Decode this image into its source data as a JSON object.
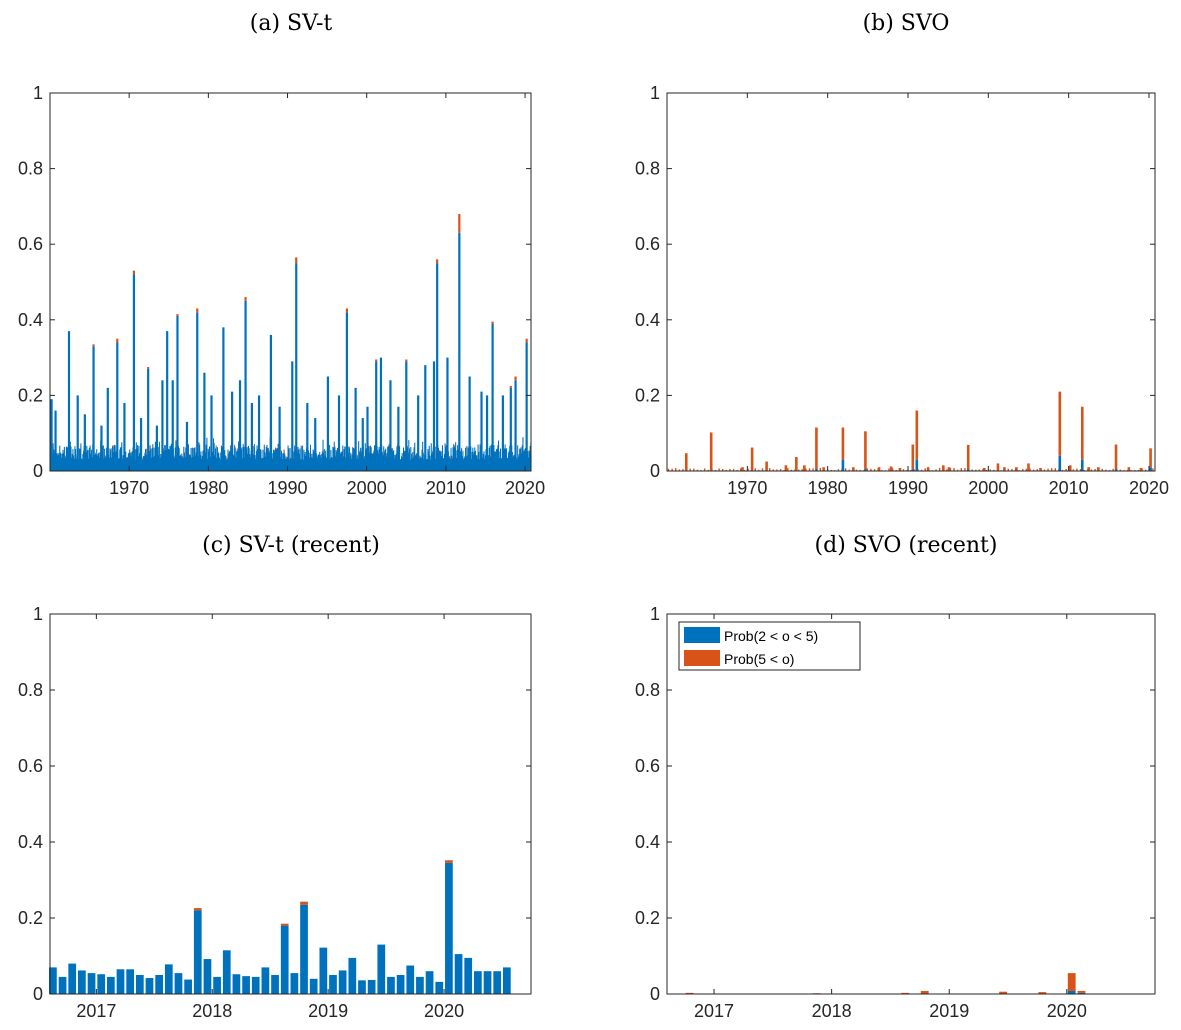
{
  "colors": {
    "blue": "#0072BD",
    "orange": "#D95319",
    "axis": "#262626"
  },
  "chart_data": [
    {
      "type": "bar",
      "stacked": true,
      "title": "(a) SV-t",
      "xlim": [
        1960,
        2020.75
      ],
      "ylim": [
        0,
        1
      ],
      "xticks": [
        1970,
        1980,
        1990,
        2000,
        2010,
        2020
      ],
      "yticks": [
        0,
        0.2,
        0.4,
        0.6,
        0.8,
        1
      ],
      "ytick_labels": [
        "0",
        "0.2",
        "0.4",
        "0.6",
        "0.8",
        "1"
      ],
      "grid": false,
      "series": [
        {
          "name": "Prob(2 < o < 5)"
        },
        {
          "name": "Prob(5 < o)"
        }
      ],
      "baseline_range": [
        0.03,
        0.07
      ],
      "spikes": [
        [
          1960.2,
          0.19,
          0
        ],
        [
          1960.7,
          0.16,
          0
        ],
        [
          1962.4,
          0.37,
          0
        ],
        [
          1963.5,
          0.2,
          0
        ],
        [
          1964.4,
          0.15,
          0
        ],
        [
          1965.5,
          0.33,
          0.005
        ],
        [
          1966.5,
          0.12,
          0
        ],
        [
          1967.3,
          0.22,
          0
        ],
        [
          1968.5,
          0.34,
          0.01
        ],
        [
          1969.4,
          0.18,
          0
        ],
        [
          1970.6,
          0.52,
          0.01
        ],
        [
          1971.5,
          0.14,
          0
        ],
        [
          1972.4,
          0.27,
          0.005
        ],
        [
          1973.5,
          0.12,
          0
        ],
        [
          1974.2,
          0.24,
          0
        ],
        [
          1974.8,
          0.37,
          0
        ],
        [
          1975.5,
          0.24,
          0
        ],
        [
          1976.1,
          0.41,
          0.005
        ],
        [
          1977.3,
          0.13,
          0
        ],
        [
          1978.6,
          0.42,
          0.01
        ],
        [
          1979.5,
          0.26,
          0
        ],
        [
          1980.4,
          0.2,
          0
        ],
        [
          1981.9,
          0.38,
          0
        ],
        [
          1983.0,
          0.21,
          0
        ],
        [
          1984.0,
          0.24,
          0
        ],
        [
          1984.7,
          0.45,
          0.01
        ],
        [
          1985.5,
          0.18,
          0
        ],
        [
          1986.4,
          0.2,
          0
        ],
        [
          1987.9,
          0.36,
          0
        ],
        [
          1989.0,
          0.17,
          0
        ],
        [
          1990.6,
          0.29,
          0
        ],
        [
          1991.1,
          0.55,
          0.015
        ],
        [
          1992.5,
          0.18,
          0
        ],
        [
          1993.5,
          0.14,
          0
        ],
        [
          1995.1,
          0.25,
          0
        ],
        [
          1996.5,
          0.2,
          0
        ],
        [
          1997.5,
          0.42,
          0.01
        ],
        [
          1998.6,
          0.22,
          0
        ],
        [
          1999.5,
          0.14,
          0
        ],
        [
          2000.1,
          0.17,
          0
        ],
        [
          2001.2,
          0.29,
          0.005
        ],
        [
          2001.8,
          0.3,
          0
        ],
        [
          2003.0,
          0.24,
          0
        ],
        [
          2004.0,
          0.17,
          0
        ],
        [
          2005.0,
          0.29,
          0.005
        ],
        [
          2006.5,
          0.2,
          0
        ],
        [
          2007.4,
          0.28,
          0
        ],
        [
          2008.5,
          0.29,
          0
        ],
        [
          2008.9,
          0.55,
          0.01
        ],
        [
          2010.2,
          0.3,
          0
        ],
        [
          2011.7,
          0.63,
          0.05
        ],
        [
          2013.0,
          0.25,
          0
        ],
        [
          2014.5,
          0.21,
          0
        ],
        [
          2015.2,
          0.2,
          0
        ],
        [
          2015.9,
          0.39,
          0.005
        ],
        [
          2017.2,
          0.2,
          0
        ],
        [
          2018.2,
          0.22,
          0.005
        ],
        [
          2018.8,
          0.24,
          0.01
        ],
        [
          2020.2,
          0.34,
          0.01
        ]
      ]
    },
    {
      "type": "bar",
      "stacked": true,
      "title": "(b) SVO",
      "xlim": [
        1960,
        2020.75
      ],
      "ylim": [
        0,
        1
      ],
      "xticks": [
        1970,
        1980,
        1990,
        2000,
        2010,
        2020
      ],
      "yticks": [
        0,
        0.2,
        0.4,
        0.6,
        0.8,
        1
      ],
      "ytick_labels": [
        "0",
        "0.2",
        "0.4",
        "0.6",
        "0.8",
        "1"
      ],
      "grid": false,
      "series": [
        {
          "name": "Prob(2 < o < 5)"
        },
        {
          "name": "Prob(5 < o)"
        }
      ],
      "spikes": [
        [
          1962.4,
          0.002,
          0.045
        ],
        [
          1965.5,
          0.002,
          0.1
        ],
        [
          1969.4,
          0,
          0.01
        ],
        [
          1970.6,
          0.002,
          0.06
        ],
        [
          1972.4,
          0,
          0.025
        ],
        [
          1974.8,
          0,
          0.015
        ],
        [
          1976.1,
          0.002,
          0.035
        ],
        [
          1977.1,
          0,
          0.015
        ],
        [
          1978.6,
          0.005,
          0.11
        ],
        [
          1979.5,
          0,
          0.01
        ],
        [
          1981.9,
          0.03,
          0.085
        ],
        [
          1983.2,
          0,
          0.01
        ],
        [
          1984.7,
          0.005,
          0.1
        ],
        [
          1986.4,
          0,
          0.01
        ],
        [
          1987.9,
          0,
          0.012
        ],
        [
          1989.0,
          0,
          0.008
        ],
        [
          1990.6,
          0.005,
          0.065
        ],
        [
          1991.1,
          0.03,
          0.13
        ],
        [
          1992.5,
          0,
          0.01
        ],
        [
          1994.4,
          0,
          0.015
        ],
        [
          1995.1,
          0,
          0.01
        ],
        [
          1997.5,
          0.004,
          0.065
        ],
        [
          1999.5,
          0,
          0.008
        ],
        [
          2001.2,
          0,
          0.02
        ],
        [
          2002.0,
          0,
          0.01
        ],
        [
          2003.5,
          0,
          0.01
        ],
        [
          2005.0,
          0,
          0.02
        ],
        [
          2006.5,
          0,
          0.008
        ],
        [
          2008.9,
          0.04,
          0.17
        ],
        [
          2010.2,
          0,
          0.015
        ],
        [
          2011.7,
          0.03,
          0.14
        ],
        [
          2012.5,
          0,
          0.01
        ],
        [
          2013.7,
          0,
          0.01
        ],
        [
          2015.9,
          0.005,
          0.065
        ],
        [
          2017.5,
          0,
          0.01
        ],
        [
          2019.0,
          0,
          0.008
        ],
        [
          2020.2,
          0.01,
          0.05
        ]
      ]
    },
    {
      "type": "bar",
      "stacked": true,
      "title": "(c) SV-t (recent)",
      "ylim": [
        0,
        1
      ],
      "x_start": 2016.625,
      "x_step": 0.083333,
      "xticks": [
        2017,
        2018,
        2019,
        2020
      ],
      "xlim": [
        2016.6,
        2020.75
      ],
      "yticks": [
        0,
        0.2,
        0.4,
        0.6,
        0.8,
        1
      ],
      "ytick_labels": [
        "0",
        "0.2",
        "0.4",
        "0.6",
        "0.8",
        "1"
      ],
      "grid": false,
      "series": [
        {
          "name": "Prob(2 < o < 5)",
          "values": [
            0.07,
            0.045,
            0.08,
            0.062,
            0.055,
            0.052,
            0.045,
            0.065,
            0.065,
            0.05,
            0.042,
            0.05,
            0.078,
            0.055,
            0.038,
            0.22,
            0.092,
            0.045,
            0.115,
            0.052,
            0.047,
            0.045,
            0.07,
            0.05,
            0.18,
            0.055,
            0.235,
            0.04,
            0.122,
            0.05,
            0.062,
            0.095,
            0.036,
            0.037,
            0.13,
            0.045,
            0.05,
            0.075,
            0.045,
            0.06,
            0.032,
            0.345,
            0.105,
            0.095,
            0.06,
            0.06,
            0.06,
            0.07
          ]
        },
        {
          "name": "Prob(5 < o)",
          "values": [
            0,
            0,
            0,
            0,
            0,
            0,
            0,
            0,
            0,
            0,
            0,
            0,
            0,
            0,
            0,
            0.006,
            0,
            0,
            0,
            0,
            0,
            0,
            0,
            0,
            0.005,
            0,
            0.008,
            0,
            0,
            0,
            0,
            0,
            0,
            0,
            0,
            0,
            0,
            0,
            0,
            0,
            0,
            0.007,
            0,
            0,
            0,
            0,
            0,
            0
          ]
        }
      ]
    },
    {
      "type": "bar",
      "stacked": true,
      "title": "(d) SVO (recent)",
      "ylim": [
        0,
        1
      ],
      "x_start": 2016.625,
      "x_step": 0.083333,
      "xticks": [
        2017,
        2018,
        2019,
        2020
      ],
      "xlim": [
        2016.6,
        2020.75
      ],
      "yticks": [
        0,
        0.2,
        0.4,
        0.6,
        0.8,
        1
      ],
      "ytick_labels": [
        "0",
        "0.2",
        "0.4",
        "0.6",
        "0.8",
        "1"
      ],
      "grid": false,
      "legend": {
        "position": "top-left",
        "entries": [
          "Prob(2 < o < 5)",
          "Prob(5 < o)"
        ]
      },
      "series": [
        {
          "name": "Prob(2 < o < 5)",
          "values": [
            0,
            0,
            0,
            0,
            0,
            0,
            0,
            0,
            0,
            0,
            0,
            0,
            0,
            0,
            0,
            0,
            0,
            0,
            0,
            0,
            0,
            0,
            0,
            0,
            0,
            0,
            0,
            0,
            0,
            0,
            0,
            0,
            0,
            0,
            0,
            0,
            0,
            0,
            0,
            0,
            0,
            0.008,
            0.003,
            0,
            0,
            0,
            0,
            0
          ]
        },
        {
          "name": "Prob(5 < o)",
          "values": [
            0,
            0,
            0.003,
            0,
            0,
            0,
            0,
            0,
            0,
            0,
            0,
            0,
            0,
            0,
            0,
            0.002,
            0,
            0,
            0,
            0,
            0,
            0,
            0,
            0,
            0.003,
            0,
            0.008,
            0,
            0,
            0,
            0,
            0,
            0,
            0,
            0.006,
            0,
            0,
            0,
            0.005,
            0,
            0,
            0.047,
            0.005,
            0,
            0,
            0,
            0,
            0
          ]
        }
      ]
    }
  ]
}
